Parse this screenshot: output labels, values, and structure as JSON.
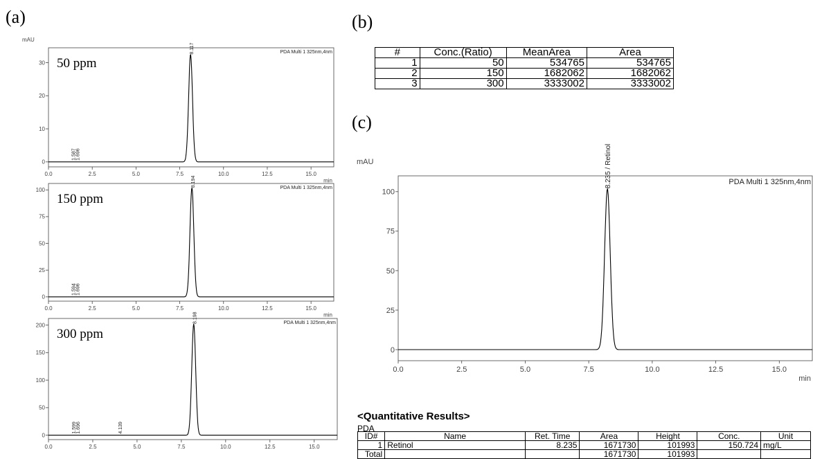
{
  "panels": {
    "a": "(a)",
    "b": "(b)",
    "c": "(c)"
  },
  "chart_data": [
    {
      "type": "line",
      "ylabel": "mAU",
      "xlabel": "min",
      "corner_label": "PDA Multi 1 325nm,4nm",
      "conc_label": "50 ppm",
      "xlim": [
        0,
        16.3
      ],
      "ylim": [
        -1.5,
        34.5
      ],
      "xticks": [
        0,
        2.5,
        5,
        7.5,
        10,
        12.5,
        15
      ],
      "xtick_labels": [
        "0.0",
        "2.5",
        "5.0",
        "7.5",
        "10.0",
        "12.5",
        "15.0"
      ],
      "yticks": [
        0,
        10,
        20,
        30
      ],
      "ytick_labels": [
        "0",
        "10",
        "20",
        "30"
      ],
      "peaks": [
        {
          "rt": 8.117,
          "height": 32.5,
          "sigma": 0.11,
          "label": "8.117"
        }
      ],
      "minor_labels": [
        "1.587",
        "1.696"
      ],
      "minor_label_x": 1.64
    },
    {
      "type": "line",
      "ylabel": "",
      "xlabel": "min",
      "corner_label": "PDA Multi 1 325nm,4nm",
      "conc_label": "150 ppm",
      "xlim": [
        0,
        16.3
      ],
      "ylim": [
        -4,
        106
      ],
      "xticks": [
        0,
        2.5,
        5,
        7.5,
        10,
        12.5,
        15
      ],
      "xtick_labels": [
        "0.0",
        "2.5",
        "5.0",
        "7.5",
        "10.0",
        "12.5",
        "15.0"
      ],
      "yticks": [
        0,
        25,
        50,
        75,
        100
      ],
      "ytick_labels": [
        "0",
        "25",
        "50",
        "75",
        "100"
      ],
      "peaks": [
        {
          "rt": 8.194,
          "height": 102,
          "sigma": 0.11,
          "label": "8.194"
        }
      ],
      "minor_labels": [
        "1.594",
        "1.696"
      ],
      "minor_label_x": 1.64
    },
    {
      "type": "line",
      "ylabel": "",
      "xlabel": "",
      "corner_label": "PDA Multi 1 325nm,4nm",
      "conc_label": "300 ppm",
      "xlim": [
        0,
        16.3
      ],
      "ylim": [
        -8,
        212
      ],
      "xticks": [
        0,
        2.5,
        5,
        7.5,
        10,
        12.5,
        15
      ],
      "xtick_labels": [
        "0.0",
        "2.5",
        "5.0",
        "7.5",
        "10.0",
        "12.5",
        "15.0"
      ],
      "yticks": [
        0,
        50,
        100,
        150,
        200
      ],
      "ytick_labels": [
        "0",
        "50",
        "100",
        "150",
        "200"
      ],
      "peaks": [
        {
          "rt": 8.198,
          "height": 202,
          "sigma": 0.11,
          "label": "8.198"
        }
      ],
      "minor_labels": [
        "1.599",
        "1.696",
        "4.139"
      ],
      "minor_label_x": 1.64
    },
    {
      "type": "line",
      "ylabel": "mAU",
      "xlabel": "min",
      "corner_label": "PDA Multi 1 325nm,4nm",
      "conc_label": "",
      "xlim": [
        0,
        16.3
      ],
      "ylim": [
        -7,
        110
      ],
      "xticks": [
        0,
        2.5,
        5,
        7.5,
        10,
        12.5,
        15
      ],
      "xtick_labels": [
        "0.0",
        "2.5",
        "5.0",
        "7.5",
        "10.0",
        "12.5",
        "15.0"
      ],
      "yticks": [
        0,
        25,
        50,
        75,
        100
      ],
      "ytick_labels": [
        "0",
        "25",
        "50",
        "75",
        "100"
      ],
      "peaks": [
        {
          "rt": 8.235,
          "height": 102,
          "sigma": 0.11,
          "label": "8.235 / Retinol"
        }
      ],
      "minor_labels": [],
      "minor_label_x": 1.64
    },
    {
      "type": "table",
      "headers": [
        "#",
        "Conc.(Ratio)",
        "MeanArea",
        "Area"
      ],
      "rows": [
        [
          "1",
          "50",
          "534765",
          "534765"
        ],
        [
          "2",
          "150",
          "1682062",
          "1682062"
        ],
        [
          "3",
          "300",
          "3333002",
          "3333002"
        ]
      ]
    }
  ],
  "quant": {
    "title": "<Quantitative Results>",
    "subtitle": "PDA",
    "headers": [
      "ID#",
      "Name",
      "Ret. Time",
      "Area",
      "Height",
      "Conc.",
      "Unit"
    ],
    "rows": [
      [
        "1",
        "Retinol",
        "8.235",
        "1671730",
        "101993",
        "150.724",
        "mg/L"
      ],
      [
        "Total",
        "",
        "",
        "1671730",
        "101993",
        "",
        ""
      ]
    ]
  }
}
